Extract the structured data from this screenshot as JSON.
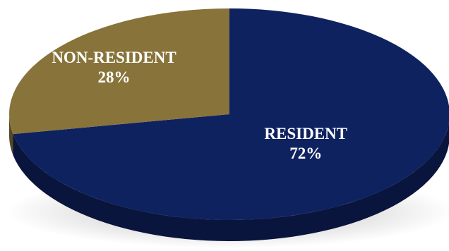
{
  "chart_data": {
    "type": "pie",
    "style": "3d",
    "categories": [
      "RESIDENT",
      "NON-RESIDENT"
    ],
    "values": [
      72,
      28
    ],
    "units": "%",
    "data_labels": [
      {
        "category": "RESIDENT",
        "value_text": "72%"
      },
      {
        "category": "NON-RESIDENT",
        "value_text": "28%"
      }
    ],
    "colors": {
      "RESIDENT": "#0f2260",
      "NON-RESIDENT": "#88743a"
    },
    "label_color": "#ffffff",
    "legend": "none"
  }
}
